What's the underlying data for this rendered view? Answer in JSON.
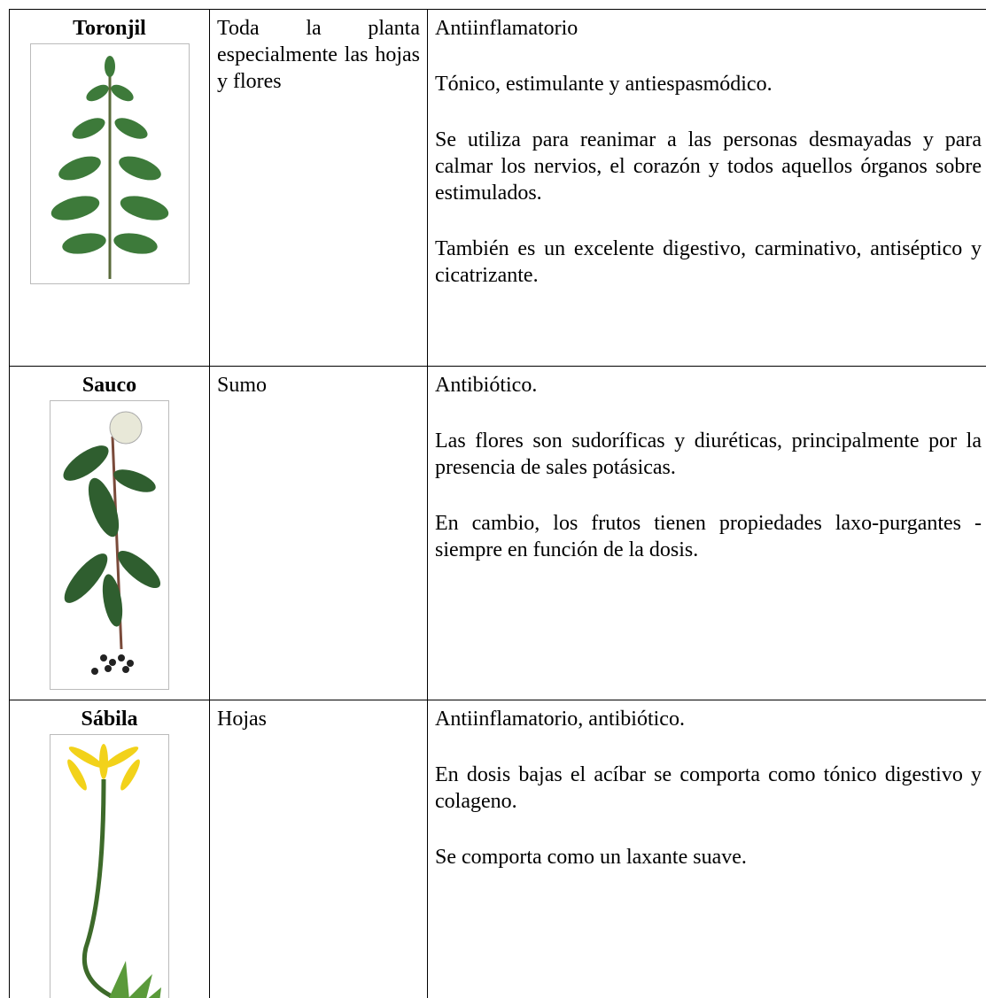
{
  "table": {
    "rows": [
      {
        "name": "Toronjil",
        "usage": "Toda la planta especialmente las hojas y flores",
        "properties": [
          "Antiinflamatorio",
          "Tónico, estimulante y antiespasmódico.",
          "Se utiliza para reanimar a las personas desmayadas y para calmar los nervios, el corazón y todos aquellos órganos sobre estimulados.",
          "También es un excelente digestivo, carminativo, antiséptico y cicatrizante."
        ]
      },
      {
        "name": "Sauco",
        "usage": "Sumo",
        "properties": [
          "Antibiótico.",
          "Las flores son sudoríficas y diuréticas, principalmente por la presencia de sales potásicas.",
          "En cambio, los frutos tienen propiedades laxo-purgantes -siempre en función de la dosis."
        ]
      },
      {
        "name": "Sábila",
        "usage": "Hojas",
        "properties": [
          "Antiinflamatorio, antibiótico.",
          "En dosis bajas el acíbar se comporta como tónico digestivo y colageno.",
          "Se comporta como un laxante suave."
        ]
      }
    ]
  }
}
